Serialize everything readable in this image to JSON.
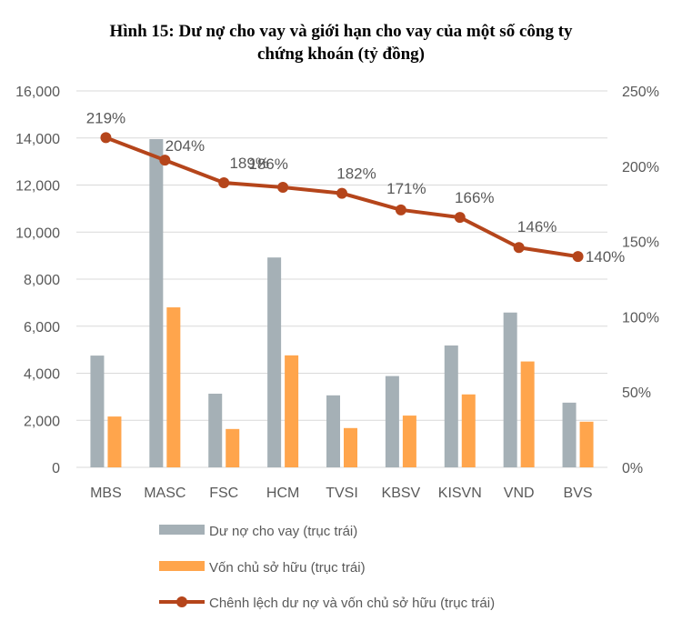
{
  "title_line1": "Hình 15: Dư nợ cho vay và giới hạn cho vay của một số công ty",
  "title_line2": "chứng khoán (tỷ đồng)",
  "chart_data": {
    "type": "bar",
    "categories": [
      "MBS",
      "MASC",
      "FSC",
      "HCM",
      "TVSI",
      "KBSV",
      "KISVN",
      "VND",
      "BVS"
    ],
    "series": [
      {
        "name": "Dư nợ cho vay (trục trái)",
        "type": "bar",
        "axis": "left",
        "color": "#A5B0B6",
        "values": [
          4750,
          13950,
          3130,
          8920,
          3060,
          3880,
          5180,
          6580,
          2750
        ]
      },
      {
        "name": "Vốn chủ sở hữu (trục trái)",
        "type": "bar",
        "axis": "left",
        "color": "#FFA54C",
        "values": [
          2160,
          6800,
          1630,
          4760,
          1670,
          2200,
          3100,
          4500,
          1940
        ]
      },
      {
        "name": "Chênh lệch dư nợ và vốn chủ sở hữu (trục trái)",
        "type": "line",
        "axis": "right",
        "color": "#B5451B",
        "values": [
          219,
          204,
          189,
          186,
          182,
          171,
          166,
          146,
          140
        ],
        "labels": [
          "219%",
          "204%",
          "189%",
          "186%",
          "182%",
          "171%",
          "166%",
          "146%",
          "140%"
        ]
      }
    ],
    "left_axis": {
      "ylim": [
        0,
        16000
      ],
      "ticks": [
        "0",
        "2,000",
        "4,000",
        "6,000",
        "8,000",
        "10,000",
        "12,000",
        "14,000",
        "16,000"
      ]
    },
    "right_axis": {
      "ylim": [
        0,
        250
      ],
      "ticks": [
        "0%",
        "50%",
        "100%",
        "150%",
        "200%",
        "250%"
      ]
    },
    "grid": true,
    "legend_position": "bottom"
  }
}
